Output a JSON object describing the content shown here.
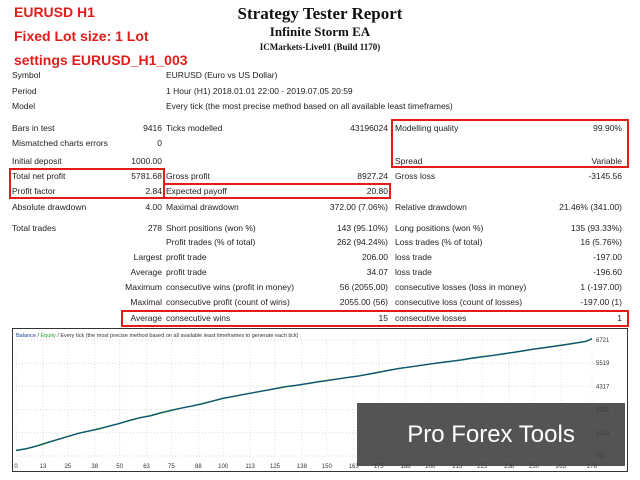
{
  "overlay": {
    "line1": "EURUSD H1",
    "line2": "Fixed Lot size: 1 Lot",
    "line3": "settings EURUSD_H1_003",
    "watermark": "Pro Forex Tools"
  },
  "report": {
    "title": "Strategy Tester Report",
    "ea_name": "Infinite Storm EA",
    "server": "ICMarkets-Live01 (Build 1170)"
  },
  "info": {
    "symbol_label": "Symbol",
    "symbol_value": "EURUSD (Euro vs US Dollar)",
    "period_label": "Period",
    "period_value": "1 Hour (H1) 2018.01.01 22:00 - 2019.07.05 20:59",
    "model_label": "Model",
    "model_value": "Every tick (the most precise method based on all available least timeframes)"
  },
  "stats": {
    "bars_label": "Bars in test",
    "bars_value": "9416",
    "ticks_label": "Ticks modelled",
    "ticks_value": "43196024",
    "mq_label": "Modelling quality",
    "mq_value": "99.90%",
    "mce_label": "Mismatched charts errors",
    "mce_value": "0",
    "spread_label": "Spread",
    "spread_value": "Variable",
    "deposit_label": "Initial deposit",
    "deposit_value": "1000.00",
    "tnp_label": "Total net profit",
    "tnp_value": "5781.68",
    "gp_label": "Gross profit",
    "gp_value": "8927.24",
    "gl_label": "Gross loss",
    "gl_value": "-3145.56",
    "pf_label": "Profit factor",
    "pf_value": "2.84",
    "ep_label": "Expected payoff",
    "ep_value": "20.80",
    "ad_label": "Absolute drawdown",
    "ad_value": "4.00",
    "md_label": "Maximal drawdown",
    "md_value": "372.00 (7.06%)",
    "rd_label": "Relative drawdown",
    "rd_value": "21.46% (341.00)",
    "tt_label": "Total trades",
    "tt_value": "278",
    "sp_label": "Short positions (won %)",
    "sp_value": "143 (95.10%)",
    "lp_label": "Long positions (won %)",
    "lp_value": "135 (93.33%)",
    "pt_label": "Profit trades (% of total)",
    "pt_value": "262 (94.24%)",
    "lt_label": "Loss trades (% of total)",
    "lt_value": "16 (5.76%)",
    "largest_label": "Largest",
    "lpt_label": "profit trade",
    "lpt_value": "206.00",
    "llt_label": "loss trade",
    "llt_value": "-197.00",
    "average_label": "Average",
    "apt_label": "profit trade",
    "apt_value": "34.07",
    "alt_label": "loss trade",
    "alt_value": "-196.60",
    "maximum_label": "Maximum",
    "mcw_label": "consecutive wins (profit in money)",
    "mcw_value": "56 (2055.00)",
    "mcl_label": "consecutive losses (loss in money)",
    "mcl_value": "1 (-197.00)",
    "maximal_label": "Maximal",
    "mcp_label": "consecutive profit (count of wins)",
    "mcp_value": "2055.00 (56)",
    "mcls_label": "consecutive loss (count of losses)",
    "mcls_value": "-197.00 (1)",
    "average2_label": "Average",
    "acw_label": "consecutive wins",
    "acw_value": "15",
    "acl_label": "consecutive losses",
    "acl_value": "1"
  },
  "chart_data": {
    "type": "line",
    "legend_balance": "Balance",
    "legend_separator": " / ",
    "legend_equity": "Equity",
    "legend_rest": " / Every tick (the most precise method based on all available least timeframes to generate each tick)",
    "x_ticks": [
      "0",
      "13",
      "25",
      "38",
      "50",
      "63",
      "75",
      "88",
      "100",
      "113",
      "125",
      "138",
      "150",
      "163",
      "175",
      "188",
      "200",
      "213",
      "225",
      "238",
      "250",
      "263",
      "278"
    ],
    "y_ticks": [
      "6721",
      "5519",
      "4317",
      "3115",
      "1913",
      "711"
    ],
    "ylim": [
      711,
      6721
    ],
    "xlim": [
      0,
      278
    ],
    "balance_color": "#1b3f9e",
    "equity_color": "#22a522",
    "series": [
      {
        "name": "Balance",
        "x": [
          0,
          5,
          10,
          15,
          20,
          25,
          30,
          35,
          40,
          45,
          50,
          55,
          60,
          65,
          70,
          75,
          80,
          85,
          90,
          95,
          100,
          105,
          110,
          115,
          120,
          125,
          130,
          135,
          140,
          145,
          150,
          155,
          160,
          165,
          170,
          175,
          180,
          185,
          190,
          195,
          200,
          205,
          210,
          215,
          220,
          225,
          230,
          235,
          240,
          245,
          250,
          255,
          260,
          265,
          270,
          275,
          278
        ],
        "y": [
          1000,
          1090,
          1230,
          1400,
          1560,
          1720,
          1880,
          2000,
          2120,
          2260,
          2400,
          2560,
          2700,
          2800,
          2950,
          3080,
          3200,
          3300,
          3420,
          3560,
          3700,
          3800,
          3900,
          4000,
          4100,
          4200,
          4300,
          4370,
          4450,
          4540,
          4620,
          4700,
          4780,
          4850,
          4950,
          5050,
          5150,
          5250,
          5320,
          5400,
          5480,
          5550,
          5620,
          5690,
          5780,
          5850,
          5920,
          6000,
          6080,
          6160,
          6250,
          6320,
          6400,
          6480,
          6560,
          6650,
          6781
        ]
      }
    ]
  }
}
